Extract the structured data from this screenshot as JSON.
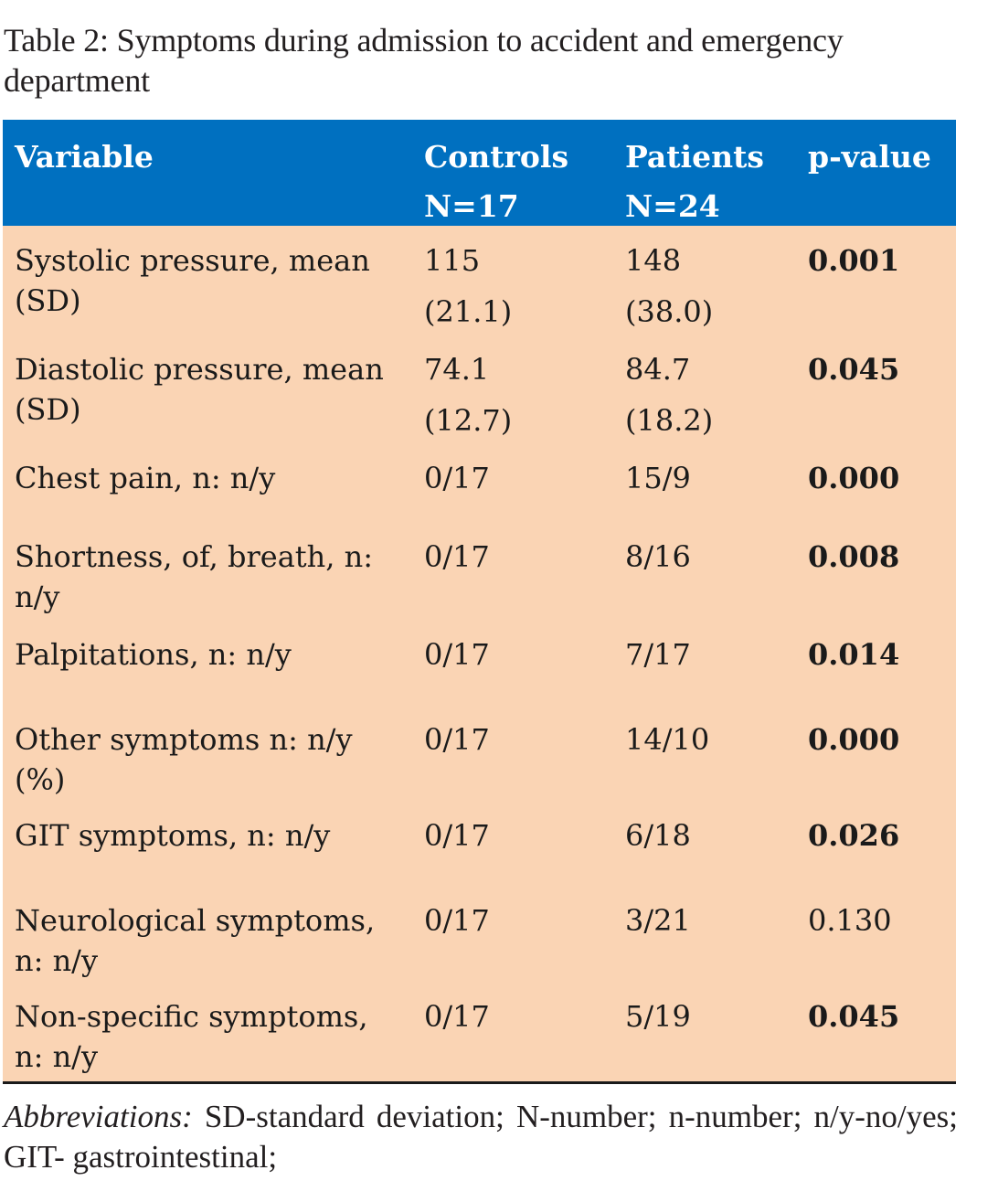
{
  "caption": "Table 2: Symptoms during admission to accident and emergency department",
  "colors": {
    "header_bg": "#0070c0",
    "body_bg": "#fad4b4",
    "header_text": "#ffffff"
  },
  "header": {
    "variable": "Variable",
    "controls": "Controls",
    "controls_n": "N=17",
    "patients": "Patients",
    "patients_n": "N=24",
    "pvalue": "p-value"
  },
  "rows": [
    {
      "variable": "Systolic pressure, mean (SD)",
      "controls": "115",
      "controls_sd": "(21.1)",
      "patients": "148",
      "patients_sd": "(38.0)",
      "p": "0.001",
      "significant": true
    },
    {
      "variable": "Diastolic pressure, mean (SD)",
      "controls": "74.1",
      "controls_sd": "(12.7)",
      "patients": "84.7",
      "patients_sd": "(18.2)",
      "p": "0.045",
      "significant": true
    },
    {
      "variable": "Chest pain, n: n/y",
      "controls": "0/17",
      "patients": "15/9",
      "p": "0.000",
      "significant": true
    },
    {
      "variable": "Shortness, of, breath, n: n/y",
      "controls": "0/17",
      "patients": "8/16",
      "p": "0.008",
      "significant": true
    },
    {
      "variable": "Palpitations, n: n/y",
      "controls": "0/17",
      "patients": "7/17",
      "p": "0.014",
      "significant": true
    },
    {
      "variable": "Other symptoms n: n/y (%)",
      "controls": "0/17",
      "patients": "14/10",
      "p": "0.000",
      "significant": true
    },
    {
      "variable": "GIT symptoms, n: n/y",
      "controls": "0/17",
      "patients": "6/18",
      "p": "0.026",
      "significant": true
    },
    {
      "variable": "Neurological symptoms, n: n/y",
      "controls": "0/17",
      "patients": "3/21",
      "p": "0.130",
      "significant": false
    },
    {
      "variable": "Non-specific symptoms, n: n/y",
      "controls": "0/17",
      "patients": "5/19",
      "p": "0.045",
      "significant": true
    }
  ],
  "footnote": {
    "label": "Abbreviations:",
    "text": "SD-standard deviation; N-number; n-number; n/y-no/yes; GIT- gastrointestinal;"
  }
}
